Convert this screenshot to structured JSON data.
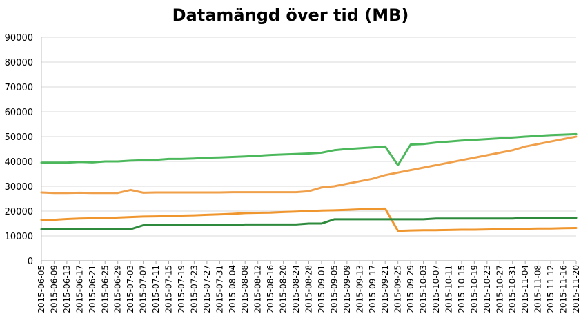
{
  "chart_data": {
    "type": "line",
    "title": "Datamängd över tid (MB)",
    "xlabel": "",
    "ylabel": "",
    "ylim": [
      0,
      90000
    ],
    "y_ticks": [
      0,
      10000,
      20000,
      30000,
      40000,
      50000,
      60000,
      70000,
      80000,
      90000
    ],
    "grid": true,
    "legend": "none",
    "x": [
      "2015-06-05",
      "2015-06-09",
      "2015-06-13",
      "2015-06-17",
      "2015-06-21",
      "2015-06-25",
      "2015-06-29",
      "2015-07-03",
      "2015-07-07",
      "2015-07-11",
      "2015-07-15",
      "2015-07-19",
      "2015-07-23",
      "2015-07-27",
      "2015-07-31",
      "2015-08-04",
      "2015-08-08",
      "2015-08-12",
      "2015-08-16",
      "2015-08-20",
      "2015-08-24",
      "2015-08-28",
      "2015-09-01",
      "2015-09-05",
      "2015-09-09",
      "2015-09-13",
      "2015-09-17",
      "2015-09-21",
      "2015-09-25",
      "2015-09-29",
      "2015-10-03",
      "2015-10-07",
      "2015-10-11",
      "2015-10-15",
      "2015-10-19",
      "2015-10-23",
      "2015-10-27",
      "2015-10-31",
      "2015-11-04",
      "2015-11-08",
      "2015-11-12",
      "2015-11-16",
      "2015-11-20"
    ],
    "series": [
      {
        "color": "#4cb85c",
        "values": [
          39500,
          39500,
          39500,
          39800,
          39600,
          40000,
          40000,
          40300,
          40500,
          40600,
          41000,
          41000,
          41200,
          41500,
          41600,
          41800,
          42000,
          42300,
          42600,
          42800,
          43000,
          43200,
          43500,
          44500,
          45000,
          45300,
          45600,
          46000,
          38500,
          46800,
          47000,
          47600,
          48000,
          48400,
          48700,
          49000,
          49300,
          49600,
          50000,
          50300,
          50600,
          50800,
          51000
        ]
      },
      {
        "color": "#f0a04a",
        "values": [
          27500,
          27300,
          27300,
          27400,
          27300,
          27300,
          27300,
          28500,
          27400,
          27500,
          27500,
          27500,
          27500,
          27500,
          27500,
          27600,
          27600,
          27600,
          27600,
          27600,
          27600,
          28000,
          29500,
          30000,
          31000,
          32000,
          33000,
          34500,
          35500,
          36500,
          37500,
          38500,
          39500,
          40500,
          41500,
          42500,
          43500,
          44500,
          46000,
          47000,
          48000,
          49000,
          50000
        ]
      },
      {
        "color": "#f0962e",
        "values": [
          16500,
          16500,
          16800,
          17000,
          17100,
          17200,
          17400,
          17600,
          17800,
          17900,
          18000,
          18200,
          18300,
          18500,
          18700,
          18900,
          19200,
          19300,
          19400,
          19600,
          19800,
          20000,
          20200,
          20300,
          20500,
          20700,
          20900,
          21000,
          12000,
          12200,
          12300,
          12300,
          12400,
          12500,
          12500,
          12600,
          12700,
          12800,
          12900,
          13000,
          13000,
          13100,
          13200
        ]
      },
      {
        "color": "#2e8b3e",
        "values": [
          12700,
          12700,
          12700,
          12700,
          12700,
          12700,
          12700,
          12700,
          14300,
          14300,
          14300,
          14300,
          14300,
          14300,
          14300,
          14300,
          14600,
          14600,
          14600,
          14600,
          14600,
          15000,
          15000,
          16700,
          16700,
          16700,
          16700,
          16700,
          16700,
          16700,
          16700,
          17000,
          17000,
          17000,
          17000,
          17000,
          17000,
          17000,
          17300,
          17300,
          17300,
          17300,
          17300
        ]
      }
    ]
  }
}
